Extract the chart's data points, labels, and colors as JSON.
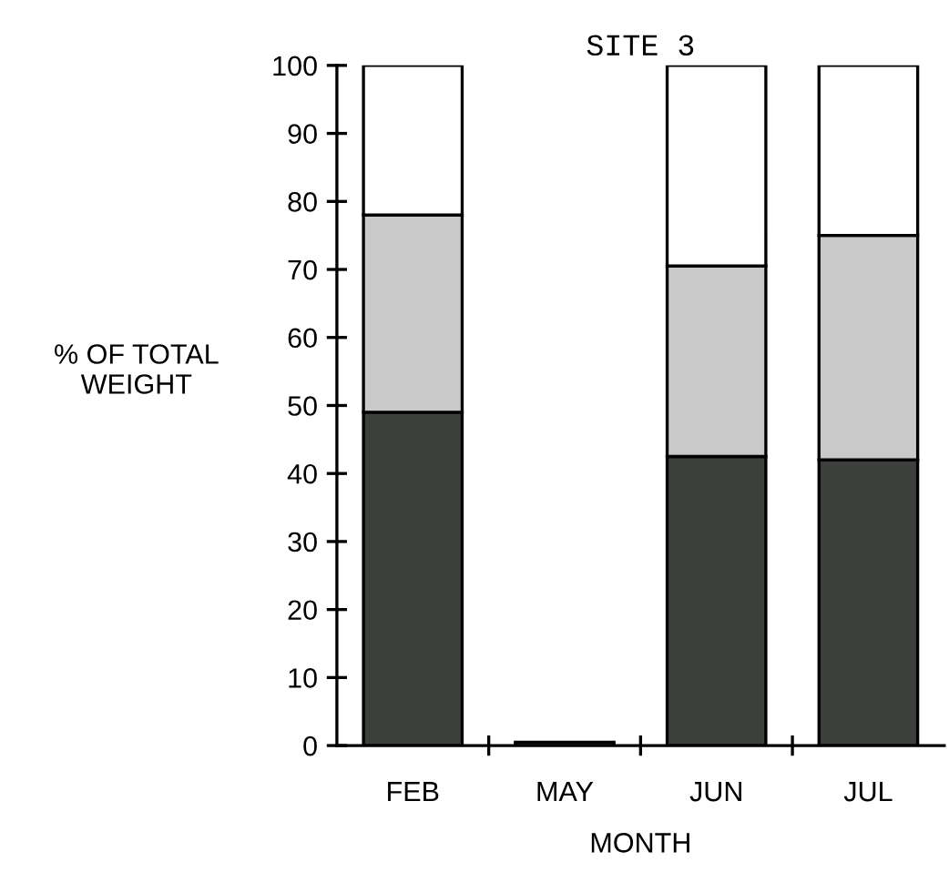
{
  "chart_data": {
    "type": "bar",
    "title": "SITE 3",
    "xlabel": "MONTH",
    "ylabel": "% OF TOTAL\nWEIGHT",
    "stacked": true,
    "categories": [
      "FEB",
      "MAY",
      "JUN",
      "JUL"
    ],
    "series": [
      {
        "color": "#3c3f3c",
        "values": [
          49,
          0.5,
          42.5,
          42
        ]
      },
      {
        "color": "#c9c9c9",
        "values": [
          29,
          null,
          28,
          33
        ]
      },
      {
        "color": "#ffffff",
        "values": [
          22,
          null,
          29.5,
          25
        ]
      }
    ],
    "ylim": [
      0,
      100
    ],
    "yticks": [
      0,
      10,
      20,
      30,
      40,
      50,
      60,
      70,
      80,
      90,
      100
    ],
    "grid": false,
    "legend": false
  }
}
